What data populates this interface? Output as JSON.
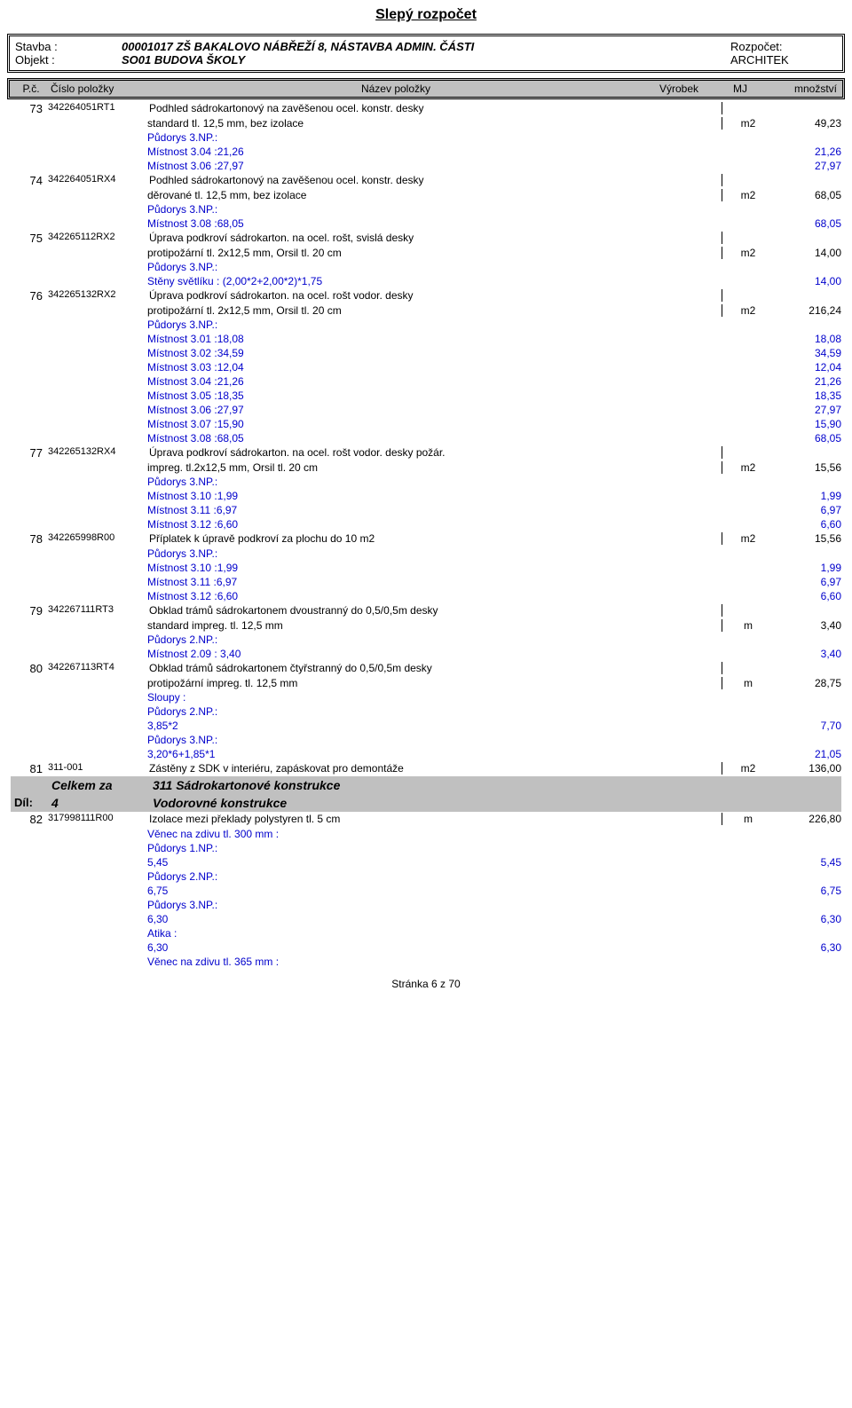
{
  "doc_title": "Slepý rozpočet",
  "header": {
    "l1_label": "Stavba :",
    "l1_value": "00001017 ZŠ BAKALOVO NÁBŘEŽÍ 8, NÁSTAVBA ADMIN. ČÁSTI",
    "l1_right": "Rozpočet:",
    "l2_label": "Objekt :",
    "l2_value": "SO01 BUDOVA ŠKOLY",
    "l2_right": "ARCHITEK"
  },
  "thead": {
    "pc": "P.č.",
    "code": "Číslo položky",
    "name": "Název položky",
    "vyrobek": "Výrobek",
    "mj": "MJ",
    "mnoz": "množství"
  },
  "footer": "Stránka 6 z 70",
  "calc_color": "#0000cc",
  "rows": [
    {
      "type": "item",
      "pc": "73",
      "code": "342264051RT1",
      "name": "Podhled sádrokartonový na zavěšenou ocel. konstr. desky",
      "name2": "standard tl. 12,5 mm, bez izolace",
      "mj": "m2",
      "mnoz": "49,23"
    },
    {
      "type": "calc",
      "text": "Půdorys 3.NP.:",
      "val": ""
    },
    {
      "type": "calc",
      "text": "Místnost 3.04 :21,26",
      "val": "21,26"
    },
    {
      "type": "calc",
      "text": "Místnost 3.06 :27,97",
      "val": "27,97"
    },
    {
      "type": "item",
      "pc": "74",
      "code": "342264051RX4",
      "name": "Podhled sádrokartonový na zavěšenou ocel. konstr. desky",
      "name2": "děrované tl. 12,5 mm, bez izolace",
      "mj": "m2",
      "mnoz": "68,05"
    },
    {
      "type": "calc",
      "text": "Půdorys 3.NP.:",
      "val": ""
    },
    {
      "type": "calc",
      "text": "Místnost 3.08 :68,05",
      "val": "68,05"
    },
    {
      "type": "item",
      "pc": "75",
      "code": "342265112RX2",
      "name": "Úprava podkroví sádrokarton. na ocel. rošt, svislá desky",
      "name2": "protipožární tl. 2x12,5 mm, Orsil tl. 20 cm",
      "mj": "m2",
      "mnoz": "14,00"
    },
    {
      "type": "calc",
      "text": "Půdorys 3.NP.:",
      "val": ""
    },
    {
      "type": "calc",
      "text": "Stěny světlíku : (2,00*2+2,00*2)*1,75",
      "val": "14,00"
    },
    {
      "type": "item",
      "pc": "76",
      "code": "342265132RX2",
      "name": "Úprava podkroví sádrokarton. na ocel. rošt vodor. desky",
      "name2": "protipožární tl. 2x12,5 mm, Orsil tl. 20 cm",
      "mj": "m2",
      "mnoz": "216,24"
    },
    {
      "type": "calc",
      "text": "Půdorys 3.NP.:",
      "val": ""
    },
    {
      "type": "calc",
      "text": "Místnost 3.01 :18,08",
      "val": "18,08"
    },
    {
      "type": "calc",
      "text": "Místnost 3.02 :34,59",
      "val": "34,59"
    },
    {
      "type": "calc",
      "text": "Místnost 3.03 :12,04",
      "val": "12,04"
    },
    {
      "type": "calc",
      "text": "Místnost 3.04 :21,26",
      "val": "21,26"
    },
    {
      "type": "calc",
      "text": "Místnost 3.05 :18,35",
      "val": "18,35"
    },
    {
      "type": "calc",
      "text": "Místnost 3.06 :27,97",
      "val": "27,97"
    },
    {
      "type": "calc",
      "text": "Místnost 3.07 :15,90",
      "val": "15,90"
    },
    {
      "type": "calc",
      "text": "Místnost 3.08 :68,05",
      "val": "68,05"
    },
    {
      "type": "item",
      "pc": "77",
      "code": "342265132RX4",
      "name": "Úprava podkroví sádrokarton. na ocel. rošt vodor. desky požár.",
      "name2": "impreg. tl.2x12,5 mm, Orsil tl. 20 cm",
      "mj": "m2",
      "mnoz": "15,56"
    },
    {
      "type": "calc",
      "text": "Půdorys 3.NP.:",
      "val": ""
    },
    {
      "type": "calc",
      "text": "Místnost 3.10 :1,99",
      "val": "1,99"
    },
    {
      "type": "calc",
      "text": "Místnost 3.11 :6,97",
      "val": "6,97"
    },
    {
      "type": "calc",
      "text": "Místnost 3.12 :6,60",
      "val": "6,60"
    },
    {
      "type": "item",
      "pc": "78",
      "code": "342265998R00",
      "name": "Příplatek k úpravě podkroví za plochu do 10 m2",
      "name2": "",
      "mj": "m2",
      "mnoz": "15,56"
    },
    {
      "type": "calc",
      "text": "Půdorys 3.NP.:",
      "val": ""
    },
    {
      "type": "calc",
      "text": "Místnost 3.10 :1,99",
      "val": "1,99"
    },
    {
      "type": "calc",
      "text": "Místnost 3.11 :6,97",
      "val": "6,97"
    },
    {
      "type": "calc",
      "text": "Místnost 3.12 :6,60",
      "val": "6,60"
    },
    {
      "type": "item",
      "pc": "79",
      "code": "342267111RT3",
      "name": "Obklad trámů sádrokartonem dvoustranný do 0,5/0,5m desky",
      "name2": "standard impreg. tl. 12,5 mm",
      "mj": "m",
      "mnoz": "3,40"
    },
    {
      "type": "calc",
      "text": "Půdorys 2.NP.:",
      "val": ""
    },
    {
      "type": "calc",
      "text": "Místnost 2.09 : 3,40",
      "val": "3,40"
    },
    {
      "type": "item",
      "pc": "80",
      "code": "342267113RT4",
      "name": "Obklad trámů sádrokartonem čtyřstranný do 0,5/0,5m desky",
      "name2": "protipožární impreg. tl. 12,5 mm",
      "mj": "m",
      "mnoz": "28,75"
    },
    {
      "type": "calc",
      "text": "Sloupy :",
      "val": ""
    },
    {
      "type": "calc",
      "text": "Půdorys 2.NP.:",
      "val": ""
    },
    {
      "type": "calc",
      "text": "3,85*2",
      "val": "7,70"
    },
    {
      "type": "calc",
      "text": "Půdorys 3.NP.:",
      "val": ""
    },
    {
      "type": "calc",
      "text": "3,20*6+1,85*1",
      "val": "21,05"
    },
    {
      "type": "item",
      "pc": "81",
      "code": "311-001",
      "name": "Zástěny z SDK v interiéru, zapáskovat pro demontáže",
      "name2": "",
      "mj": "m2",
      "mnoz": "136,00"
    },
    {
      "type": "section",
      "left": "Celkem za",
      "name": "311 Sádrokartonové konstrukce"
    },
    {
      "type": "section",
      "pc": "Díl:",
      "left": "4",
      "name": "Vodorovné konstrukce"
    },
    {
      "type": "item",
      "pc": "82",
      "code": "317998111R00",
      "name": "Izolace mezi překlady polystyren tl. 5 cm",
      "name2": "",
      "mj": "m",
      "mnoz": "226,80"
    },
    {
      "type": "calc",
      "text": "Věnec na zdivu tl. 300 mm :",
      "val": ""
    },
    {
      "type": "calc",
      "text": "Půdorys 1.NP.:",
      "val": ""
    },
    {
      "type": "calc",
      "text": "5,45",
      "val": "5,45"
    },
    {
      "type": "calc",
      "text": "Půdorys 2.NP.:",
      "val": ""
    },
    {
      "type": "calc",
      "text": "6,75",
      "val": "6,75"
    },
    {
      "type": "calc",
      "text": "Půdorys 3.NP.:",
      "val": ""
    },
    {
      "type": "calc",
      "text": "6,30",
      "val": "6,30"
    },
    {
      "type": "calc",
      "text": "Atika :",
      "val": ""
    },
    {
      "type": "calc",
      "text": "6,30",
      "val": "6,30"
    },
    {
      "type": "calc",
      "text": "Věnec na zdivu tl. 365 mm :",
      "val": ""
    }
  ]
}
